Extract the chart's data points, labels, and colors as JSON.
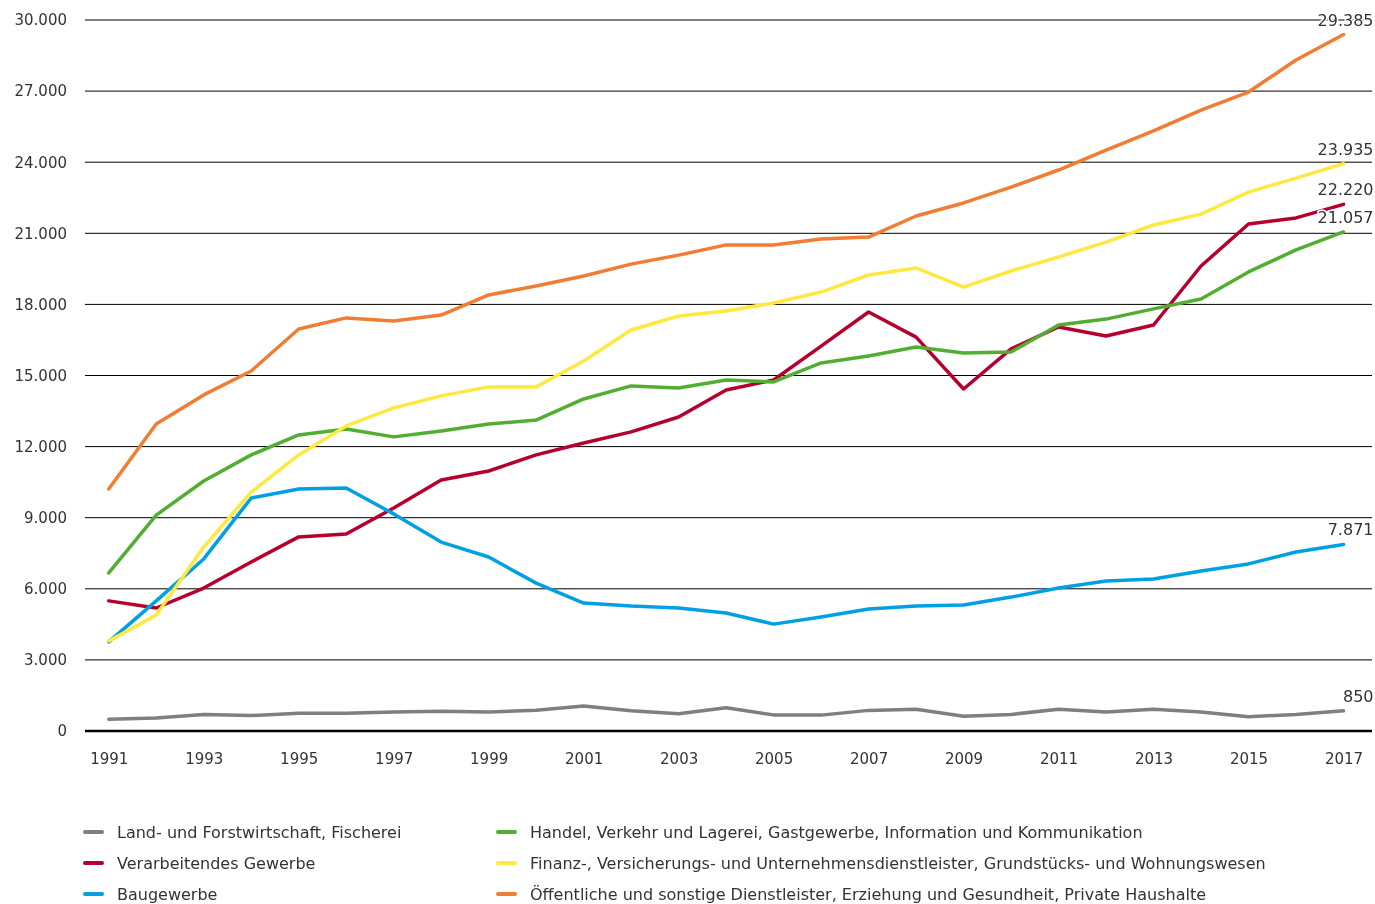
{
  "chart_data": {
    "type": "line",
    "x": [
      1991,
      1992,
      1993,
      1994,
      1995,
      1996,
      1997,
      1998,
      1999,
      2000,
      2001,
      2002,
      2003,
      2004,
      2005,
      2006,
      2007,
      2008,
      2009,
      2010,
      2011,
      2012,
      2013,
      2014,
      2015,
      2016,
      2017
    ],
    "xlim": [
      1990.5,
      2017.6
    ],
    "xticks": [
      1991,
      1993,
      1995,
      1997,
      1999,
      2001,
      2003,
      2005,
      2007,
      2009,
      2011,
      2013,
      2015,
      2017
    ],
    "ylim": [
      0,
      30000
    ],
    "yticks": [
      {
        "value": 0,
        "label": "0"
      },
      {
        "value": 3000,
        "label": "3.000"
      },
      {
        "value": 6000,
        "label": "6.000"
      },
      {
        "value": 9000,
        "label": "9.000"
      },
      {
        "value": 12000,
        "label": "12.000"
      },
      {
        "value": 15000,
        "label": "15.000"
      },
      {
        "value": 18000,
        "label": "18.000"
      },
      {
        "value": 21000,
        "label": "21.000"
      },
      {
        "value": 24000,
        "label": "24.000"
      },
      {
        "value": 27000,
        "label": "27.000"
      },
      {
        "value": 30000,
        "label": "30.000"
      }
    ],
    "grid": "y",
    "legend": "bottom",
    "marker": "none",
    "line_style": "solid",
    "series": [
      {
        "name": "Land- und Forstwirtschaft, Fischerei",
        "color": "#7f7f7f",
        "values": [
          500,
          550,
          700,
          650,
          750,
          750,
          800,
          830,
          800,
          880,
          1050,
          850,
          730,
          980,
          680,
          670,
          870,
          920,
          620,
          700,
          920,
          800,
          920,
          800,
          600,
          700,
          850
        ],
        "value_labels": [
          null,
          null,
          null,
          null,
          null,
          null,
          null,
          null,
          null,
          null,
          null,
          null,
          null,
          null,
          null,
          null,
          null,
          null,
          null,
          null,
          null,
          null,
          null,
          null,
          null,
          null,
          "850"
        ]
      },
      {
        "name": "Verarbeitendes Gewerbe",
        "color": "#b5002e",
        "values": [
          5490,
          5190,
          6030,
          7130,
          8190,
          8310,
          9410,
          10590,
          10970,
          11650,
          12150,
          12620,
          13250,
          14390,
          14810,
          16240,
          17680,
          16620,
          14430,
          16120,
          17050,
          16670,
          17130,
          19620,
          21390,
          21650,
          22220
        ],
        "value_labels": [
          null,
          null,
          null,
          null,
          null,
          null,
          null,
          null,
          null,
          null,
          null,
          null,
          null,
          null,
          null,
          null,
          null,
          null,
          null,
          null,
          null,
          null,
          null,
          null,
          null,
          null,
          "22.220"
        ]
      },
      {
        "name": "Baugewerbe",
        "color": "#00a0e3",
        "values": [
          3760,
          5490,
          7260,
          9830,
          10210,
          10250,
          9160,
          7970,
          7340,
          6240,
          5400,
          5270,
          5190,
          4980,
          4510,
          4810,
          5150,
          5270,
          5320,
          5650,
          6030,
          6330,
          6410,
          6750,
          7050,
          7550,
          7871
        ],
        "value_labels": [
          null,
          null,
          null,
          null,
          null,
          null,
          null,
          null,
          null,
          null,
          null,
          null,
          null,
          null,
          null,
          null,
          null,
          null,
          null,
          null,
          null,
          null,
          null,
          null,
          null,
          null,
          "7.871"
        ]
      },
      {
        "name": "Handel, Verkehr und Lagerei, Gastgewerbe, Information und Kommunikation",
        "color": "#52ae32",
        "values": [
          6670,
          9110,
          10550,
          11650,
          12490,
          12740,
          12410,
          12660,
          12950,
          13120,
          14010,
          14560,
          14470,
          14810,
          14730,
          15530,
          15820,
          16200,
          15950,
          15990,
          17130,
          17380,
          17810,
          18230,
          19370,
          20300,
          21057
        ],
        "value_labels": [
          null,
          null,
          null,
          null,
          null,
          null,
          null,
          null,
          null,
          null,
          null,
          null,
          null,
          null,
          null,
          null,
          null,
          null,
          null,
          null,
          null,
          null,
          null,
          null,
          null,
          null,
          "21.057"
        ]
      },
      {
        "name": "Finanz-, Versicherungs- und Unternehmensdienstleister, Grundstücks- und Wohnungswesen",
        "color": "#ffe940",
        "values": [
          3800,
          4890,
          7760,
          10080,
          11650,
          12870,
          13630,
          14140,
          14520,
          14520,
          15610,
          16920,
          17510,
          17720,
          18060,
          18520,
          19240,
          19540,
          18730,
          19410,
          20000,
          20630,
          21350,
          21810,
          22740,
          23330,
          23935
        ],
        "value_labels": [
          null,
          null,
          null,
          null,
          null,
          null,
          null,
          null,
          null,
          null,
          null,
          null,
          null,
          null,
          null,
          null,
          null,
          null,
          null,
          null,
          null,
          null,
          null,
          null,
          null,
          null,
          "23.935"
        ]
      },
      {
        "name": "Öffentliche und sonstige Dienstleister, Erziehung und Gesundheit, Private Haushalte",
        "color": "#f07d33",
        "values": [
          10210,
          12950,
          14180,
          15190,
          16960,
          17430,
          17300,
          17550,
          18400,
          18780,
          19200,
          19700,
          20080,
          20510,
          20510,
          20760,
          20840,
          21730,
          22280,
          22950,
          23670,
          24510,
          25320,
          26200,
          26960,
          28310,
          29385
        ],
        "value_labels": [
          null,
          null,
          null,
          null,
          null,
          null,
          null,
          null,
          null,
          null,
          null,
          null,
          null,
          null,
          null,
          null,
          null,
          null,
          null,
          null,
          null,
          null,
          null,
          null,
          null,
          null,
          "29.385"
        ]
      }
    ]
  }
}
